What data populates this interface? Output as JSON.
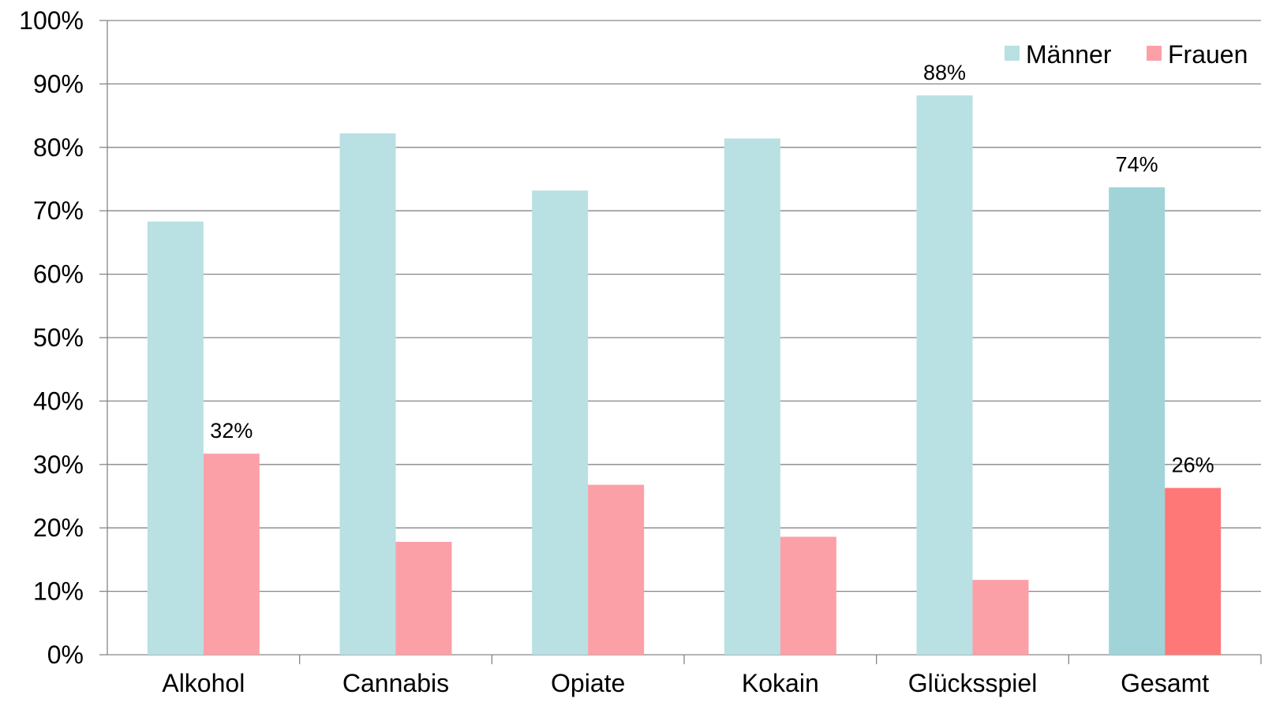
{
  "chart_data": {
    "type": "bar",
    "categories": [
      "Alkohol",
      "Cannabis",
      "Opiate",
      "Kokain",
      "Glücksspiel",
      "Gesamt"
    ],
    "series": [
      {
        "name": "Männer",
        "values": [
          68.3,
          82.2,
          73.2,
          81.4,
          88.2,
          73.7
        ]
      },
      {
        "name": "Frauen",
        "values": [
          31.7,
          17.8,
          26.8,
          18.6,
          11.8,
          26.3
        ]
      }
    ],
    "data_labels": [
      {
        "category": "Alkohol",
        "series": "Frauen",
        "text": "32%"
      },
      {
        "category": "Glücksspiel",
        "series": "Männer",
        "text": "88%"
      },
      {
        "category": "Gesamt",
        "series": "Männer",
        "text": "74%"
      },
      {
        "category": "Gesamt",
        "series": "Frauen",
        "text": "26%"
      }
    ],
    "ylim": [
      0,
      100
    ],
    "yticks": [
      "0%",
      "10%",
      "20%",
      "30%",
      "40%",
      "50%",
      "60%",
      "70%",
      "80%",
      "90%",
      "100%"
    ],
    "grid": true,
    "legend_position": "top-right",
    "colors": {
      "Männer": "#b9e0e3",
      "Frauen": "#fca0a8",
      "Männer_highlight": "#a0d4d8",
      "Frauen_highlight": "#fe7878"
    },
    "highlight_category": "Gesamt"
  }
}
